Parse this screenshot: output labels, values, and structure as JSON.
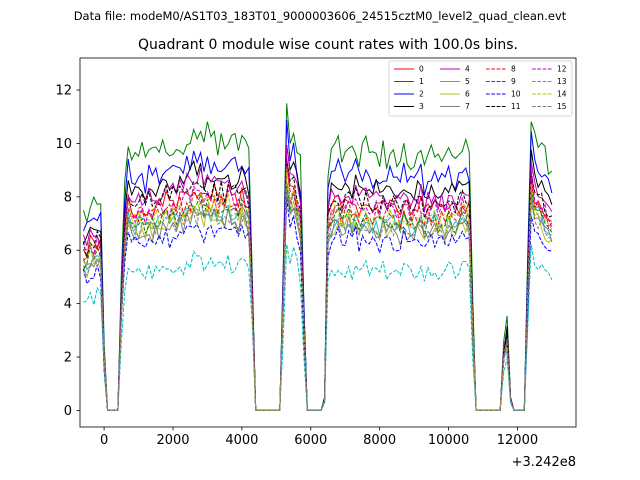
{
  "figure": {
    "suptitle": "Data file: modeM0/AS1T03_183T01_9000003606_24515cztM0_level2_quad_clean.evt"
  },
  "chart_data": {
    "type": "line",
    "title": "Quadrant 0 module wise count rates with 100.0s bins.",
    "xlabel": "",
    "ylabel": "",
    "x_offset_label": "+3.242e8",
    "xlim": [
      -700,
      13700
    ],
    "ylim": [
      -0.62,
      13.2
    ],
    "xticks": [
      0,
      2000,
      4000,
      6000,
      8000,
      10000,
      12000
    ],
    "xtick_labels": [
      "0",
      "2000",
      "4000",
      "6000",
      "8000",
      "10000",
      "12000"
    ],
    "yticks": [
      0,
      2,
      4,
      6,
      8,
      10,
      12
    ],
    "ytick_labels": [
      "0",
      "2",
      "4",
      "6",
      "8",
      "10",
      "12"
    ],
    "grid": false,
    "legend_location": "top-right",
    "legend_columns": 4,
    "x": [
      -600,
      -500,
      -400,
      -300,
      -200,
      -100,
      0,
      100,
      200,
      300,
      400,
      500,
      600,
      700,
      800,
      900,
      1000,
      1100,
      1200,
      1300,
      1400,
      1500,
      1600,
      1700,
      1800,
      1900,
      2000,
      2100,
      2200,
      2300,
      2400,
      2500,
      2600,
      2700,
      2800,
      2900,
      3000,
      3100,
      3200,
      3300,
      3400,
      3500,
      3600,
      3700,
      3800,
      3900,
      4000,
      4100,
      4200,
      4300,
      4400,
      4500,
      4600,
      4700,
      4800,
      4900,
      5000,
      5100,
      5200,
      5300,
      5400,
      5500,
      5600,
      5700,
      5800,
      5900,
      6000,
      6100,
      6200,
      6300,
      6400,
      6500,
      6600,
      6700,
      6800,
      6900,
      7000,
      7100,
      7200,
      7300,
      7400,
      7500,
      7600,
      7700,
      7800,
      7900,
      8000,
      8100,
      8200,
      8300,
      8400,
      8500,
      8600,
      8700,
      8800,
      8900,
      9000,
      9100,
      9200,
      9300,
      9400,
      9500,
      9600,
      9700,
      9800,
      9900,
      10000,
      10100,
      10200,
      10300,
      10400,
      10500,
      10600,
      10700,
      10800,
      10900,
      11000,
      11100,
      11200,
      11300,
      11400,
      11500,
      11600,
      11700,
      11800,
      11900,
      12000,
      12100,
      12200,
      12300,
      12400,
      12500,
      12600,
      12700,
      12800,
      12900,
      13000
    ],
    "series": [
      {
        "name": "0",
        "color": "#ff0000",
        "style": "solid",
        "base": 7.9,
        "amp": 0.35,
        "seed": 1
      },
      {
        "name": "1",
        "color": "#008000",
        "style": "solid",
        "base": 10.0,
        "amp": 0.45,
        "seed": 2
      },
      {
        "name": "2",
        "color": "#0000ff",
        "style": "solid",
        "base": 9.1,
        "amp": 0.35,
        "seed": 3
      },
      {
        "name": "3",
        "color": "#000000",
        "style": "solid",
        "base": 8.6,
        "amp": 0.35,
        "seed": 4
      },
      {
        "name": "4",
        "color": "#bf00bf",
        "style": "solid",
        "base": 8.3,
        "amp": 0.35,
        "seed": 5
      },
      {
        "name": "5",
        "color": "#17becf",
        "style": "solid",
        "base": 7.3,
        "amp": 0.35,
        "seed": 6
      },
      {
        "name": "6",
        "color": "#bcbd22",
        "style": "solid",
        "base": 7.1,
        "amp": 0.35,
        "seed": 7
      },
      {
        "name": "7",
        "color": "#7f7f7f",
        "style": "solid",
        "base": 7.0,
        "amp": 0.35,
        "seed": 8
      },
      {
        "name": "8",
        "color": "#ff0000",
        "style": "dashed",
        "base": 7.6,
        "amp": 0.35,
        "seed": 9
      },
      {
        "name": "9",
        "color": "#008000",
        "style": "dashed",
        "base": 7.4,
        "amp": 0.35,
        "seed": 10
      },
      {
        "name": "10",
        "color": "#0000ff",
        "style": "dashed",
        "base": 6.6,
        "amp": 0.35,
        "seed": 11
      },
      {
        "name": "11",
        "color": "#000000",
        "style": "dashed",
        "base": 8.1,
        "amp": 0.35,
        "seed": 12
      },
      {
        "name": "12",
        "color": "#bf00bf",
        "style": "dashed",
        "base": 7.8,
        "amp": 0.35,
        "seed": 13
      },
      {
        "name": "13",
        "color": "#00bfbf",
        "style": "dashed",
        "base": 5.4,
        "amp": 0.3,
        "seed": 14
      },
      {
        "name": "14",
        "color": "#bfbf00",
        "style": "dashed",
        "base": 7.5,
        "amp": 0.35,
        "seed": 15
      },
      {
        "name": "15",
        "color": "#7f7f7f",
        "style": "dashed",
        "base": 7.1,
        "amp": 0.35,
        "seed": 16
      }
    ],
    "profile": [
      0.76,
      0.74,
      0.79,
      0.78,
      0.8,
      0.78,
      0.25,
      0,
      0,
      0,
      0,
      0.5,
      0.86,
      1.0,
      0.92,
      0.94,
      0.95,
      0.96,
      0.93,
      0.98,
      0.95,
      0.97,
      0.96,
      0.99,
      1.0,
      0.97,
      1.0,
      0.98,
      1.01,
      0.99,
      1.03,
      1.02,
      1.05,
      1.02,
      1.06,
      1.0,
      1.04,
      1.01,
      1.03,
      1.0,
      1.02,
      1.0,
      1.04,
      1.0,
      1.01,
      0.98,
      1.03,
      1.0,
      0.97,
      0.55,
      0,
      0,
      0,
      0,
      0,
      0,
      0,
      0,
      0.55,
      1.19,
      1.04,
      1.08,
      1.0,
      0.93,
      0.4,
      0,
      0,
      0,
      0,
      0,
      0.05,
      0.9,
      0.96,
      0.98,
      1.0,
      0.95,
      0.97,
      1.0,
      0.96,
      1.0,
      0.95,
      0.97,
      0.99,
      0.96,
      0.95,
      0.97,
      0.94,
      0.98,
      0.95,
      0.97,
      0.96,
      0.95,
      0.93,
      0.99,
      0.96,
      0.94,
      0.95,
      0.97,
      0.98,
      0.92,
      0.96,
      0.95,
      0.97,
      0.94,
      0.96,
      0.93,
      0.98,
      0.96,
      0.94,
      0.97,
      1.0,
      0.98,
      0.96,
      0.4,
      0,
      0,
      0,
      0,
      0,
      0,
      0,
      0.0,
      0.28,
      0.34,
      0.05,
      0,
      0,
      0,
      0,
      0.58,
      1.12,
      1.0,
      1.0,
      0.98,
      0.95,
      0.92,
      0.88
    ]
  }
}
